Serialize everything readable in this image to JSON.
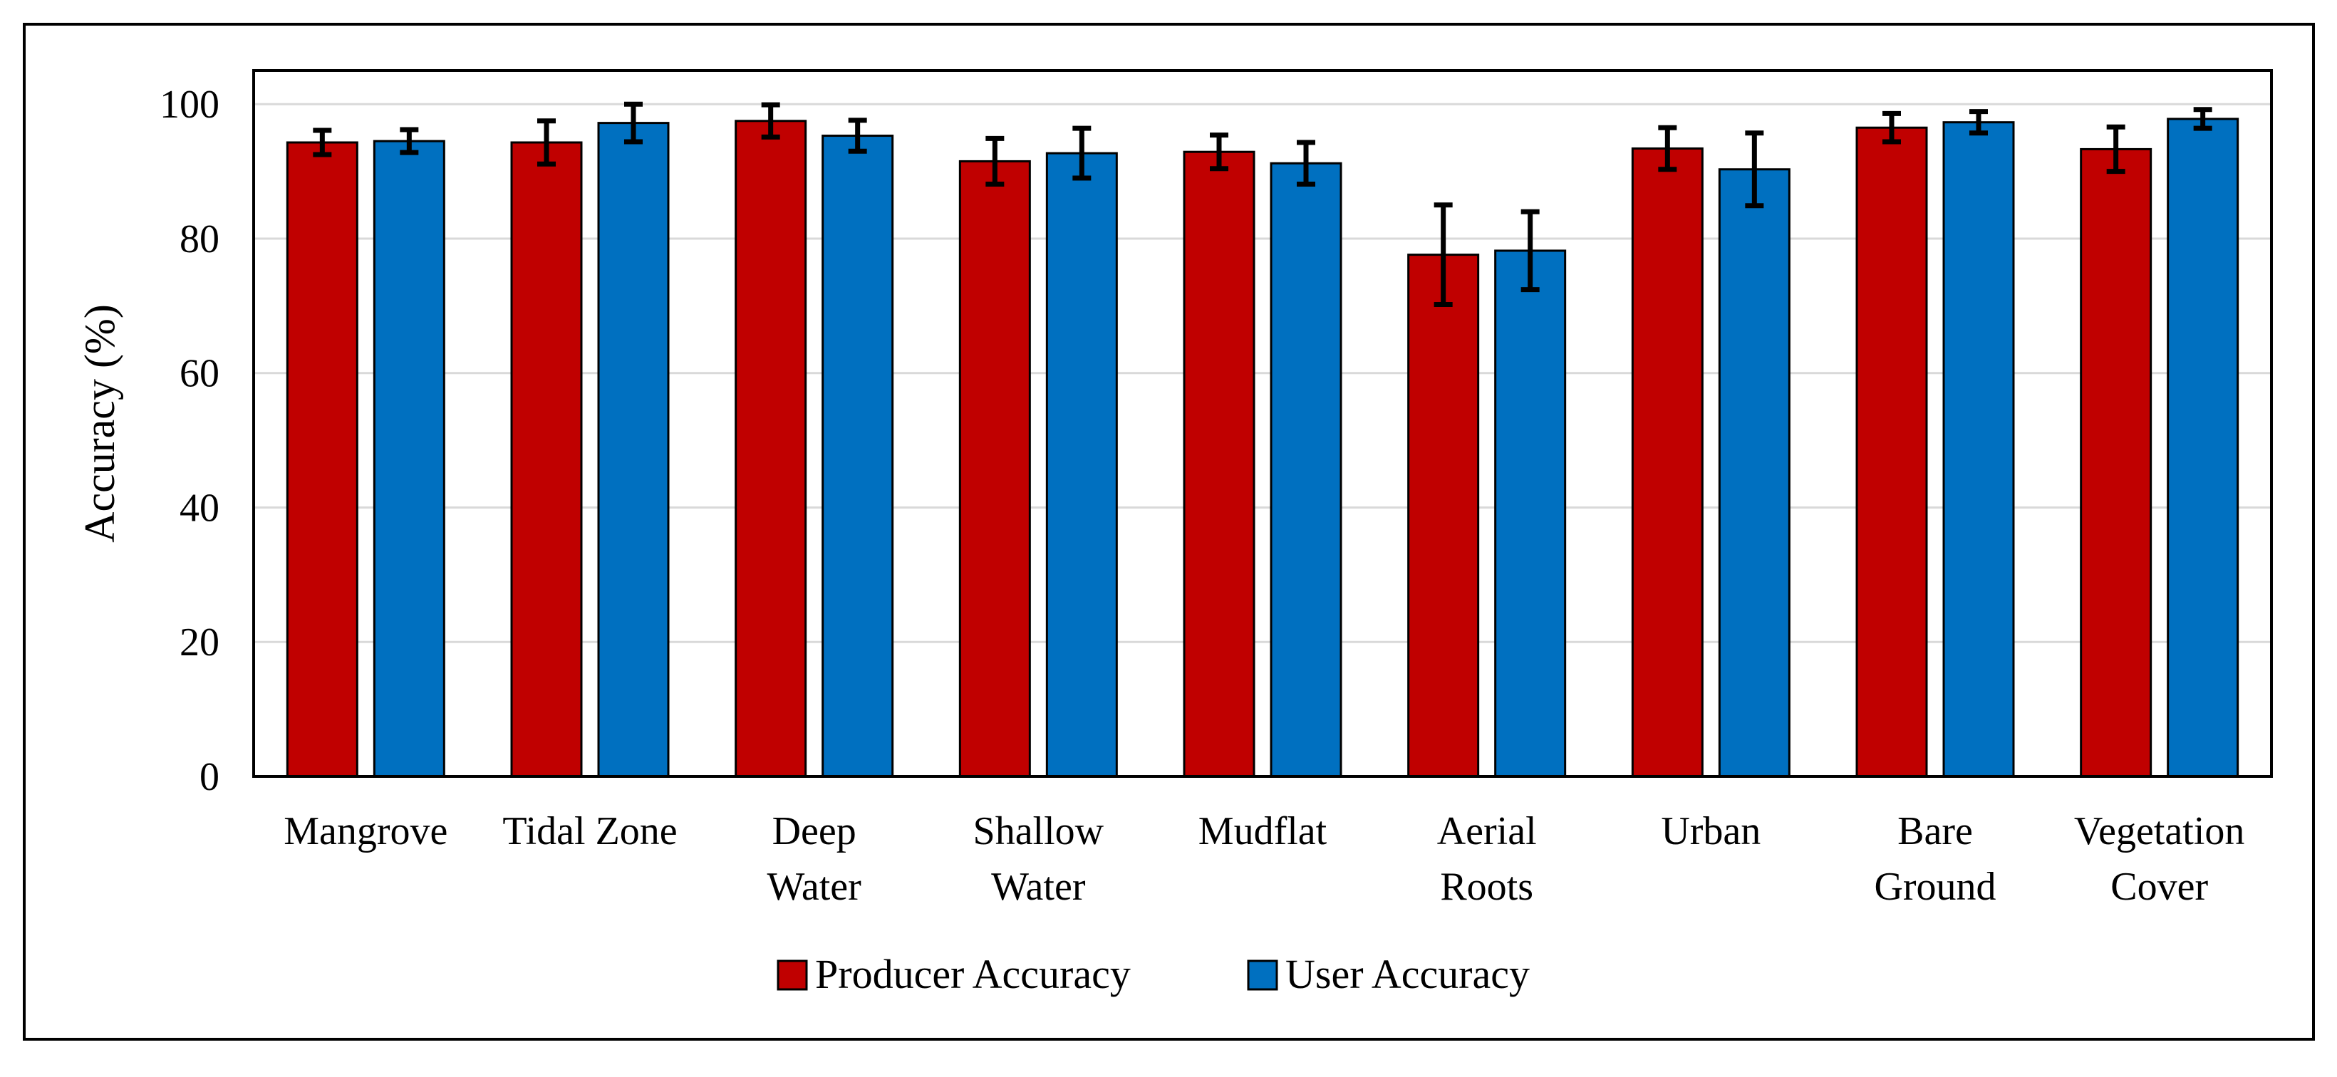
{
  "chart_data": {
    "type": "bar",
    "title": "",
    "xlabel": "",
    "ylabel": "Accuracy (%)",
    "ylim": [
      0,
      105
    ],
    "yticks": [
      0,
      20,
      40,
      60,
      80,
      100
    ],
    "grid": true,
    "legend_position": "bottom",
    "categories": [
      [
        "Mangrove"
      ],
      [
        "Tidal Zone"
      ],
      [
        "Deep",
        "Water"
      ],
      [
        "Shallow",
        "Water"
      ],
      [
        "Mudflat"
      ],
      [
        "Aerial",
        "Roots"
      ],
      [
        "Urban"
      ],
      [
        "Bare",
        "Ground"
      ],
      [
        "Vegetation",
        "Cover"
      ]
    ],
    "series": [
      {
        "name": "Producer Accuracy",
        "color": "#C00000",
        "values": [
          94.3,
          94.3,
          97.5,
          91.5,
          92.9,
          77.6,
          93.4,
          96.5,
          93.3
        ],
        "errors": [
          1.8,
          3.2,
          2.4,
          3.4,
          2.5,
          7.4,
          3.1,
          2.1,
          3.3
        ]
      },
      {
        "name": "User Accuracy",
        "color": "#0070C0",
        "values": [
          94.5,
          97.2,
          95.3,
          92.7,
          91.2,
          78.2,
          90.3,
          97.3,
          97.8
        ],
        "errors": [
          1.7,
          2.8,
          2.3,
          3.7,
          3.1,
          5.8,
          5.4,
          1.6,
          1.4
        ]
      }
    ]
  }
}
